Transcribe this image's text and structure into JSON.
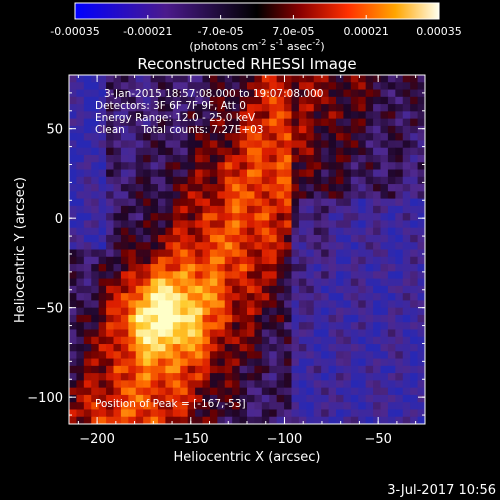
{
  "colorbar": {
    "tick_labels": [
      "-0.00035",
      "-0.00021",
      "-7.0e-05",
      "7.0e-05",
      "0.00021",
      "0.00035"
    ],
    "tick_values": [
      -0.00035,
      -0.00021,
      -7e-05,
      7e-05,
      0.00021,
      0.00035
    ],
    "range": [
      -0.00035,
      0.00035
    ],
    "unit_label": "(photons cm",
    "unit_exp1": "-2",
    "unit_mid": " s",
    "unit_exp2": "-1",
    "unit_end": " asec",
    "unit_exp3": "-2",
    "unit_close": ")"
  },
  "chart_data": {
    "type": "heatmap",
    "title": "Reconstructed RHESSI Image",
    "xlabel": "Heliocentric X (arcsec)",
    "ylabel": "Heliocentric Y (arcsec)",
    "xlim": [
      -215,
      -25
    ],
    "ylim": [
      -115,
      80
    ],
    "x_ticks": [
      -200,
      -150,
      -100,
      -50
    ],
    "x_tick_labels": [
      "−200",
      "−150",
      "−100",
      "−50"
    ],
    "y_ticks": [
      -100,
      -50,
      0,
      50
    ],
    "y_tick_labels": [
      "−100",
      "−50",
      "0",
      "50"
    ],
    "colormap": [
      "#0000ff",
      "#5a2a9a",
      "#000000",
      "#8b0000",
      "#ff4500",
      "#ffa500",
      "#ffff66",
      "#ffffff"
    ],
    "peak": [
      -167,
      -53
    ],
    "annotations": [
      "3-Jan-2015 18:57:08.000 to 19:07:08.000",
      "Detectors: 3F 6F 7F 9F, Att 0",
      "Energy Range: 12.0 - 25.0 keV",
      "Clean     Total counts: 7.27E+03"
    ],
    "peak_label": "Position of Peak = [-167,-53]"
  },
  "footer": {
    "timestamp": "3-Jul-2017 10:56"
  }
}
